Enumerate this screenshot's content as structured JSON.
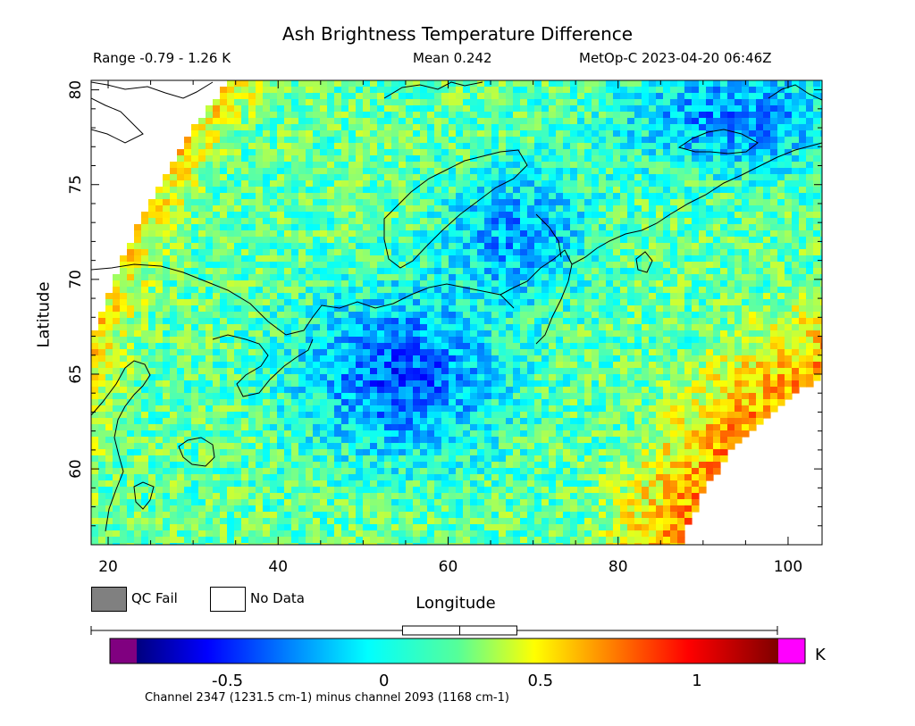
{
  "header": {
    "title": "Ash Brightness Temperature Difference",
    "range_text": "Range -0.79 - 1.26 K",
    "mean_text": "Mean 0.242",
    "satellite_text": "MetOp-C 2023-04-20 06:46Z"
  },
  "legend_keys": {
    "qc_fail": "QC Fail",
    "no_data": "No Data",
    "qc_fail_color": "#808080",
    "no_data_color": "#ffffff"
  },
  "colorbar": {
    "unit": "K",
    "ticks": [
      "-0.5",
      "0",
      "0.5",
      "1"
    ],
    "tick_values": [
      -0.5,
      0,
      0.5,
      1
    ],
    "range": [
      -0.79,
      1.26
    ],
    "mean": 0.242,
    "under_color": "#800080",
    "over_color": "#ff00ff",
    "caption": "Channel 2347 (1231.5 cm-1) minus channel 2093 (1168 cm-1)"
  },
  "chart_data": {
    "type": "heatmap",
    "title": "Ash Brightness Temperature Difference",
    "xlabel": "Longitude",
    "ylabel": "Latitude",
    "xlim": [
      18,
      104
    ],
    "ylim": [
      56,
      80.5
    ],
    "x_ticks": [
      "20",
      "40",
      "60",
      "80",
      "100"
    ],
    "x_tick_values": [
      20,
      40,
      60,
      80,
      100
    ],
    "y_ticks": [
      "60",
      "65",
      "70",
      "75",
      "80"
    ],
    "y_tick_values": [
      60,
      65,
      70,
      75,
      80
    ],
    "value_range": [
      -0.79,
      1.26
    ],
    "mean": 0.242,
    "colormap": "jet",
    "grid": false
  }
}
